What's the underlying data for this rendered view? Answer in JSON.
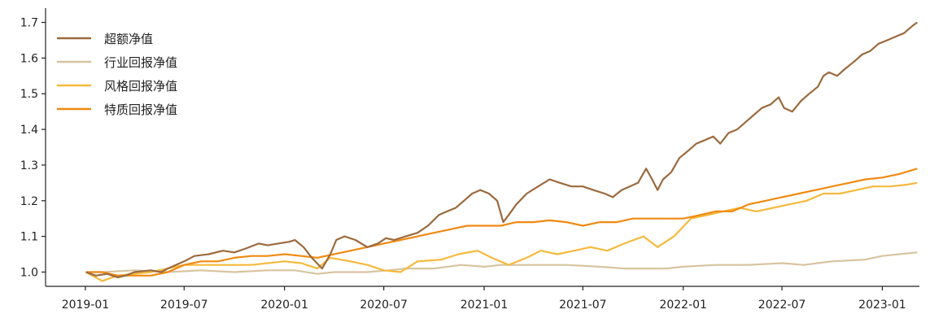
{
  "chart_data": {
    "type": "line",
    "xlim": [
      "2018-10-20",
      "2023-03-10"
    ],
    "ylim": [
      0.96,
      1.74
    ],
    "x_ticks": [
      "2019-01",
      "2019-07",
      "2020-01",
      "2020-07",
      "2021-01",
      "2021-07",
      "2022-01",
      "2022-07",
      "2023-01"
    ],
    "y_ticks": [
      "1.0",
      "1.1",
      "1.2",
      "1.3",
      "1.4",
      "1.5",
      "1.6",
      "1.7"
    ],
    "legend_position": "top-left",
    "grid": false,
    "series": [
      {
        "name": "超额净值",
        "color": "#9B6A3E",
        "points": [
          [
            "2019-01-02",
            1.0
          ],
          [
            "2019-01-20",
            0.99
          ],
          [
            "2019-02-10",
            0.995
          ],
          [
            "2019-03-01",
            0.985
          ],
          [
            "2019-03-15",
            0.99
          ],
          [
            "2019-04-01",
            1.0
          ],
          [
            "2019-05-01",
            1.005
          ],
          [
            "2019-05-20",
            1.0
          ],
          [
            "2019-06-01",
            1.01
          ],
          [
            "2019-07-01",
            1.03
          ],
          [
            "2019-07-20",
            1.045
          ],
          [
            "2019-08-15",
            1.05
          ],
          [
            "2019-09-10",
            1.06
          ],
          [
            "2019-10-01",
            1.055
          ],
          [
            "2019-10-20",
            1.065
          ],
          [
            "2019-11-15",
            1.08
          ],
          [
            "2019-12-01",
            1.075
          ],
          [
            "2019-12-20",
            1.08
          ],
          [
            "2020-01-10",
            1.085
          ],
          [
            "2020-01-20",
            1.09
          ],
          [
            "2020-02-05",
            1.07
          ],
          [
            "2020-02-20",
            1.04
          ],
          [
            "2020-03-10",
            1.01
          ],
          [
            "2020-03-25",
            1.05
          ],
          [
            "2020-04-05",
            1.09
          ],
          [
            "2020-04-20",
            1.1
          ],
          [
            "2020-05-10",
            1.09
          ],
          [
            "2020-06-01",
            1.07
          ],
          [
            "2020-06-20",
            1.08
          ],
          [
            "2020-07-05",
            1.095
          ],
          [
            "2020-07-20",
            1.09
          ],
          [
            "2020-08-10",
            1.1
          ],
          [
            "2020-09-01",
            1.11
          ],
          [
            "2020-09-20",
            1.13
          ],
          [
            "2020-10-10",
            1.16
          ],
          [
            "2020-10-25",
            1.17
          ],
          [
            "2020-11-10",
            1.18
          ],
          [
            "2020-11-25",
            1.2
          ],
          [
            "2020-12-10",
            1.22
          ],
          [
            "2020-12-25",
            1.23
          ],
          [
            "2021-01-10",
            1.22
          ],
          [
            "2021-01-25",
            1.2
          ],
          [
            "2021-02-05",
            1.14
          ],
          [
            "2021-02-15",
            1.16
          ],
          [
            "2021-03-01",
            1.19
          ],
          [
            "2021-03-20",
            1.22
          ],
          [
            "2021-04-10",
            1.24
          ],
          [
            "2021-05-01",
            1.26
          ],
          [
            "2021-05-20",
            1.25
          ],
          [
            "2021-06-10",
            1.24
          ],
          [
            "2021-07-01",
            1.24
          ],
          [
            "2021-07-20",
            1.23
          ],
          [
            "2021-08-10",
            1.22
          ],
          [
            "2021-08-25",
            1.21
          ],
          [
            "2021-09-10",
            1.23
          ],
          [
            "2021-09-25",
            1.24
          ],
          [
            "2021-10-10",
            1.25
          ],
          [
            "2021-10-25",
            1.29
          ],
          [
            "2021-11-05",
            1.26
          ],
          [
            "2021-11-15",
            1.23
          ],
          [
            "2021-11-25",
            1.26
          ],
          [
            "2021-12-10",
            1.28
          ],
          [
            "2021-12-25",
            1.32
          ],
          [
            "2022-01-10",
            1.34
          ],
          [
            "2022-01-25",
            1.36
          ],
          [
            "2022-02-10",
            1.37
          ],
          [
            "2022-02-25",
            1.38
          ],
          [
            "2022-03-10",
            1.36
          ],
          [
            "2022-03-25",
            1.39
          ],
          [
            "2022-04-10",
            1.4
          ],
          [
            "2022-04-25",
            1.42
          ],
          [
            "2022-05-10",
            1.44
          ],
          [
            "2022-05-25",
            1.46
          ],
          [
            "2022-06-10",
            1.47
          ],
          [
            "2022-06-25",
            1.49
          ],
          [
            "2022-07-05",
            1.46
          ],
          [
            "2022-07-20",
            1.45
          ],
          [
            "2022-08-05",
            1.48
          ],
          [
            "2022-08-20",
            1.5
          ],
          [
            "2022-09-05",
            1.52
          ],
          [
            "2022-09-15",
            1.55
          ],
          [
            "2022-09-25",
            1.56
          ],
          [
            "2022-10-10",
            1.55
          ],
          [
            "2022-10-25",
            1.57
          ],
          [
            "2022-11-10",
            1.59
          ],
          [
            "2022-11-25",
            1.61
          ],
          [
            "2022-12-10",
            1.62
          ],
          [
            "2022-12-25",
            1.64
          ],
          [
            "2023-01-10",
            1.65
          ],
          [
            "2023-01-25",
            1.66
          ],
          [
            "2023-02-10",
            1.67
          ],
          [
            "2023-02-25",
            1.69
          ],
          [
            "2023-03-06",
            1.7
          ]
        ]
      },
      {
        "name": "行业回报净值",
        "color": "#D7C4A0",
        "points": [
          [
            "2019-01-02",
            1.0
          ],
          [
            "2019-02-01",
            1.0
          ],
          [
            "2019-04-01",
            1.005
          ],
          [
            "2019-06-01",
            1.0
          ],
          [
            "2019-08-01",
            1.005
          ],
          [
            "2019-10-01",
            1.0
          ],
          [
            "2019-12-01",
            1.005
          ],
          [
            "2020-01-20",
            1.005
          ],
          [
            "2020-03-01",
            0.995
          ],
          [
            "2020-04-01",
            1.0
          ],
          [
            "2020-06-01",
            1.0
          ],
          [
            "2020-07-10",
            1.005
          ],
          [
            "2020-08-10",
            1.01
          ],
          [
            "2020-10-01",
            1.01
          ],
          [
            "2020-11-20",
            1.02
          ],
          [
            "2021-01-01",
            1.015
          ],
          [
            "2021-02-01",
            1.02
          ],
          [
            "2021-04-01",
            1.02
          ],
          [
            "2021-06-01",
            1.02
          ],
          [
            "2021-08-01",
            1.015
          ],
          [
            "2021-09-15",
            1.01
          ],
          [
            "2021-11-01",
            1.01
          ],
          [
            "2021-12-01",
            1.01
          ],
          [
            "2022-01-01",
            1.015
          ],
          [
            "2022-03-01",
            1.02
          ],
          [
            "2022-05-01",
            1.02
          ],
          [
            "2022-07-01",
            1.025
          ],
          [
            "2022-08-10",
            1.02
          ],
          [
            "2022-10-01",
            1.03
          ],
          [
            "2022-12-01",
            1.035
          ],
          [
            "2023-01-01",
            1.045
          ],
          [
            "2023-02-01",
            1.05
          ],
          [
            "2023-03-06",
            1.055
          ]
        ]
      },
      {
        "name": "风格回报净值",
        "color": "#F5B93D",
        "points": [
          [
            "2019-01-02",
            1.0
          ],
          [
            "2019-02-01",
            0.975
          ],
          [
            "2019-03-01",
            0.99
          ],
          [
            "2019-05-01",
            1.0
          ],
          [
            "2019-07-01",
            1.02
          ],
          [
            "2019-09-01",
            1.02
          ],
          [
            "2019-11-01",
            1.02
          ],
          [
            "2020-01-01",
            1.03
          ],
          [
            "2020-02-01",
            1.025
          ],
          [
            "2020-03-01",
            1.01
          ],
          [
            "2020-03-25",
            1.04
          ],
          [
            "2020-05-01",
            1.03
          ],
          [
            "2020-06-01",
            1.02
          ],
          [
            "2020-07-01",
            1.005
          ],
          [
            "2020-08-01",
            1.0
          ],
          [
            "2020-09-01",
            1.03
          ],
          [
            "2020-10-15",
            1.035
          ],
          [
            "2020-11-15",
            1.05
          ],
          [
            "2020-12-20",
            1.06
          ],
          [
            "2021-01-15",
            1.04
          ],
          [
            "2021-02-15",
            1.02
          ],
          [
            "2021-03-20",
            1.04
          ],
          [
            "2021-04-15",
            1.06
          ],
          [
            "2021-05-15",
            1.05
          ],
          [
            "2021-06-15",
            1.06
          ],
          [
            "2021-07-15",
            1.07
          ],
          [
            "2021-08-15",
            1.06
          ],
          [
            "2021-09-15",
            1.08
          ],
          [
            "2021-10-20",
            1.1
          ],
          [
            "2021-11-15",
            1.07
          ],
          [
            "2021-12-15",
            1.1
          ],
          [
            "2022-01-15",
            1.15
          ],
          [
            "2022-02-15",
            1.16
          ],
          [
            "2022-03-15",
            1.17
          ],
          [
            "2022-04-15",
            1.18
          ],
          [
            "2022-05-15",
            1.17
          ],
          [
            "2022-06-15",
            1.18
          ],
          [
            "2022-07-15",
            1.19
          ],
          [
            "2022-08-15",
            1.2
          ],
          [
            "2022-09-15",
            1.22
          ],
          [
            "2022-10-15",
            1.22
          ],
          [
            "2022-11-15",
            1.23
          ],
          [
            "2022-12-15",
            1.24
          ],
          [
            "2023-01-15",
            1.24
          ],
          [
            "2023-02-15",
            1.245
          ],
          [
            "2023-03-06",
            1.25
          ]
        ]
      },
      {
        "name": "特质回报净值",
        "color": "#F08A12",
        "points": [
          [
            "2019-01-02",
            1.0
          ],
          [
            "2019-02-01",
            1.0
          ],
          [
            "2019-03-01",
            0.99
          ],
          [
            "2019-05-01",
            0.99
          ],
          [
            "2019-06-01",
            1.0
          ],
          [
            "2019-07-01",
            1.02
          ],
          [
            "2019-08-01",
            1.03
          ],
          [
            "2019-09-01",
            1.03
          ],
          [
            "2019-10-01",
            1.04
          ],
          [
            "2019-11-01",
            1.045
          ],
          [
            "2019-12-01",
            1.045
          ],
          [
            "2020-01-01",
            1.05
          ],
          [
            "2020-02-01",
            1.045
          ],
          [
            "2020-03-01",
            1.04
          ],
          [
            "2020-04-01",
            1.05
          ],
          [
            "2020-05-01",
            1.06
          ],
          [
            "2020-06-01",
            1.07
          ],
          [
            "2020-07-01",
            1.08
          ],
          [
            "2020-08-01",
            1.09
          ],
          [
            "2020-09-01",
            1.1
          ],
          [
            "2020-10-01",
            1.11
          ],
          [
            "2020-11-01",
            1.12
          ],
          [
            "2020-12-01",
            1.13
          ],
          [
            "2021-01-01",
            1.13
          ],
          [
            "2021-02-01",
            1.13
          ],
          [
            "2021-03-01",
            1.14
          ],
          [
            "2021-04-01",
            1.14
          ],
          [
            "2021-05-01",
            1.145
          ],
          [
            "2021-06-01",
            1.14
          ],
          [
            "2021-07-01",
            1.13
          ],
          [
            "2021-08-01",
            1.14
          ],
          [
            "2021-09-01",
            1.14
          ],
          [
            "2021-10-01",
            1.15
          ],
          [
            "2021-11-01",
            1.15
          ],
          [
            "2021-12-01",
            1.15
          ],
          [
            "2022-01-01",
            1.15
          ],
          [
            "2022-02-01",
            1.16
          ],
          [
            "2022-03-01",
            1.17
          ],
          [
            "2022-04-01",
            1.17
          ],
          [
            "2022-05-01",
            1.19
          ],
          [
            "2022-06-01",
            1.2
          ],
          [
            "2022-07-01",
            1.21
          ],
          [
            "2022-08-01",
            1.22
          ],
          [
            "2022-09-01",
            1.23
          ],
          [
            "2022-10-01",
            1.24
          ],
          [
            "2022-11-01",
            1.25
          ],
          [
            "2022-12-01",
            1.26
          ],
          [
            "2023-01-01",
            1.265
          ],
          [
            "2023-02-01",
            1.275
          ],
          [
            "2023-03-06",
            1.29
          ]
        ]
      }
    ]
  }
}
